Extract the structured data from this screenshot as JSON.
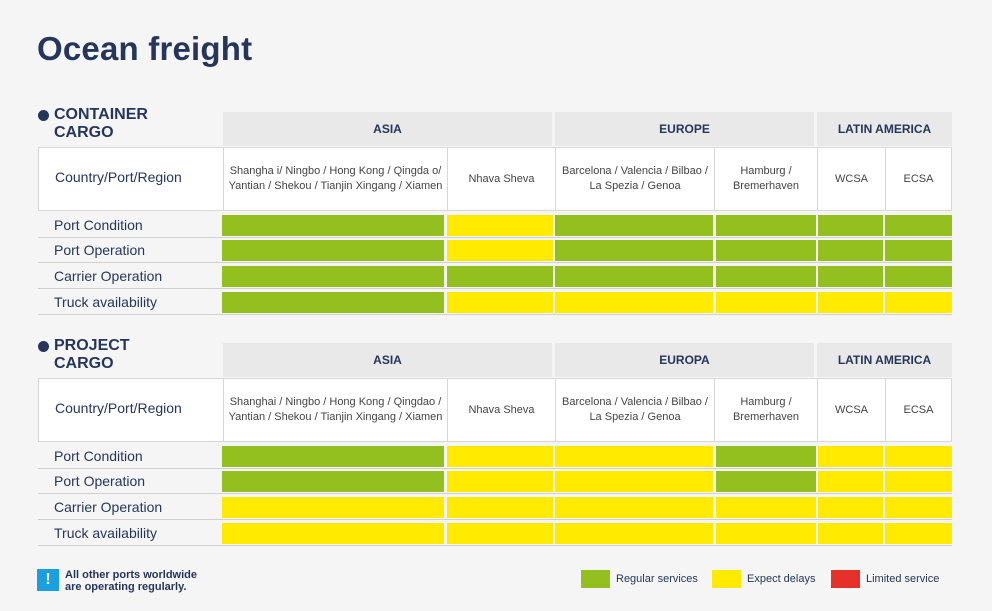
{
  "title": "Ocean freight",
  "colors": {
    "regular": "#93c01f",
    "delays": "#ffea00",
    "limited": "#e5312a",
    "navy": "#26365a",
    "info": "#1aa0e0"
  },
  "row_labels": [
    "Port Condition",
    "Port Operation",
    "Carrier Operation",
    "Truck availability"
  ],
  "port_label": "Country/Port/Region",
  "sections": [
    {
      "label_line1": "CONTAINER",
      "label_line2": "CARGO",
      "regions": [
        "ASIA",
        "EUROPE",
        "LATIN AMERICA"
      ],
      "ports": [
        "Shangha i/ Ningbo / Hong Kong / Qingda o/ Yantian / Shekou / Tianjin Xingang / Xiamen",
        "Nhava Sheva",
        "Barcelona / Valencia / Bilbao / La Spezia / Genoa",
        "Hamburg / Bremerhaven",
        "WCSA",
        "ECSA"
      ],
      "status": [
        [
          "regular",
          "delays",
          "regular",
          "regular",
          "regular",
          "regular"
        ],
        [
          "regular",
          "delays",
          "regular",
          "regular",
          "regular",
          "regular"
        ],
        [
          "regular",
          "regular",
          "regular",
          "regular",
          "regular",
          "regular"
        ],
        [
          "regular",
          "delays",
          "delays",
          "delays",
          "delays",
          "delays"
        ]
      ]
    },
    {
      "label_line1": "PROJECT",
      "label_line2": "CARGO",
      "regions": [
        "ASIA",
        "EUROPA",
        "LATIN AMERICA"
      ],
      "ports": [
        "Shanghai / Ningbo / Hong Kong / Qingdao / Yantian / Shekou / Tianjin Xingang / Xiamen",
        "Nhava Sheva",
        "Barcelona / Valencia / Bilbao / La Spezia / Genoa",
        "Hamburg / Bremerhaven",
        "WCSA",
        "ECSA"
      ],
      "status": [
        [
          "regular",
          "delays",
          "delays",
          "regular",
          "delays",
          "delays"
        ],
        [
          "regular",
          "delays",
          "delays",
          "regular",
          "delays",
          "delays"
        ],
        [
          "delays",
          "delays",
          "delays",
          "delays",
          "delays",
          "delays"
        ],
        [
          "delays",
          "delays",
          "delays",
          "delays",
          "delays",
          "delays"
        ]
      ]
    }
  ],
  "note": {
    "icon": "exclamation-icon",
    "symbol": "!",
    "line1": "All other ports worldwide",
    "line2": "are operating regularly."
  },
  "legend": [
    {
      "status": "regular",
      "label": "Regular services"
    },
    {
      "status": "delays",
      "label": "Expect delays"
    },
    {
      "status": "limited",
      "label": "Limited service"
    }
  ]
}
